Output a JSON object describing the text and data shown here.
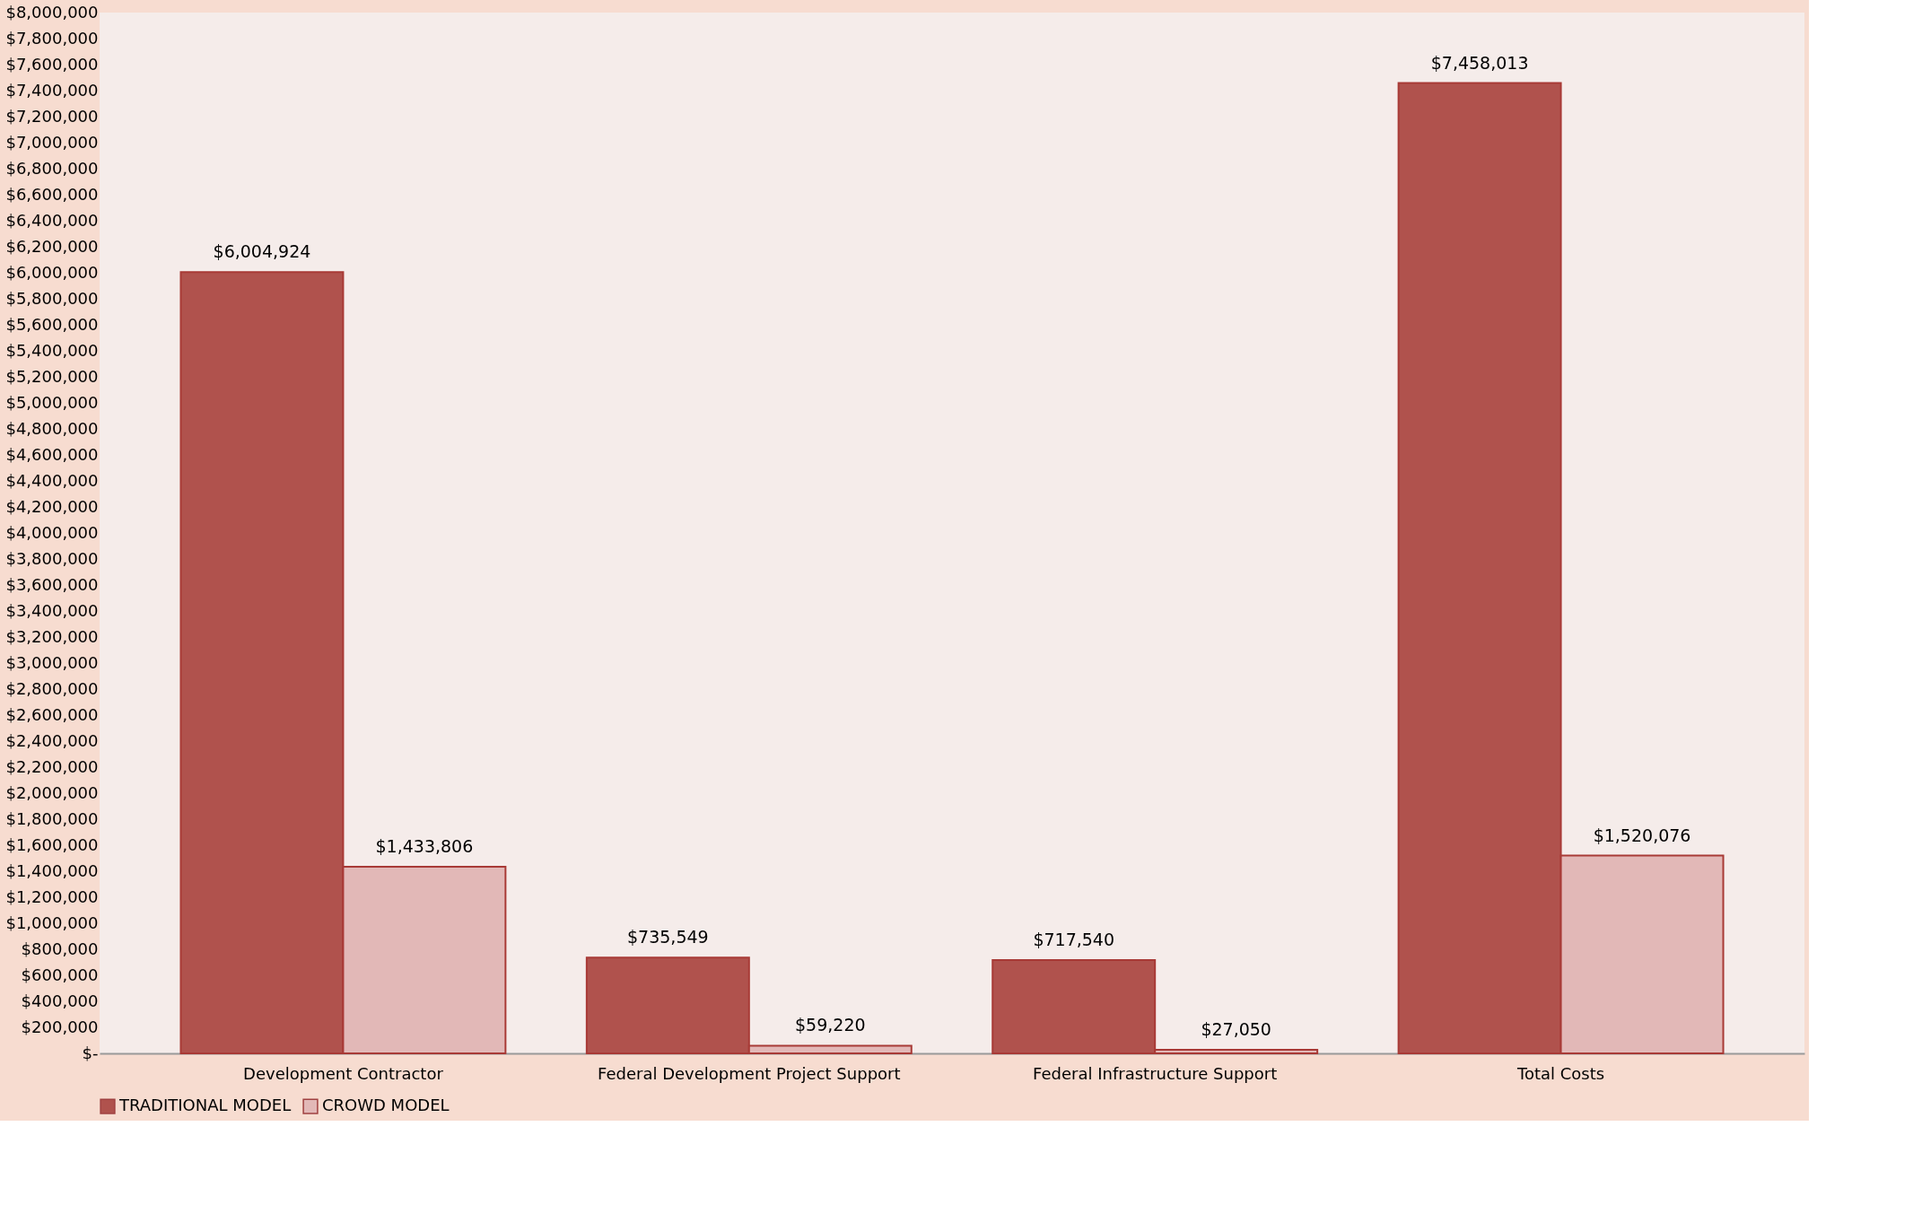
{
  "chart_data": {
    "type": "bar",
    "categories": [
      "Development Contractor",
      "Federal Development Project Support",
      "Federal Infrastructure Support",
      "Total Costs"
    ],
    "series": [
      {
        "name": "TRADITIONAL MODEL",
        "color": "#b0524d",
        "values": [
          6004924,
          735549,
          717540,
          7458013
        ],
        "value_labels": [
          "$6,004,924",
          "$735,549",
          "$717,540",
          "$7,458,013"
        ]
      },
      {
        "name": "CROWD MODEL",
        "color": "#e2b8b7",
        "values": [
          1433806,
          59220,
          27050,
          1520076
        ],
        "value_labels": [
          "$1,433,806",
          "$59,220",
          "$27,050",
          "$1,520,076"
        ]
      }
    ],
    "ylim": [
      0,
      8000000
    ],
    "yticks": [
      {
        "value": 0,
        "label": "$-"
      },
      {
        "value": 200000,
        "label": "$200,000"
      },
      {
        "value": 400000,
        "label": "$400,000"
      },
      {
        "value": 600000,
        "label": "$600,000"
      },
      {
        "value": 800000,
        "label": "$800,000"
      },
      {
        "value": 1000000,
        "label": "$1,000,000"
      },
      {
        "value": 1200000,
        "label": "$1,200,000"
      },
      {
        "value": 1400000,
        "label": "$1,400,000"
      },
      {
        "value": 1600000,
        "label": "$1,600,000"
      },
      {
        "value": 1800000,
        "label": "$1,800,000"
      },
      {
        "value": 2000000,
        "label": "$2,000,000"
      },
      {
        "value": 2200000,
        "label": "$2,200,000"
      },
      {
        "value": 2400000,
        "label": "$2,400,000"
      },
      {
        "value": 2600000,
        "label": "$2,600,000"
      },
      {
        "value": 2800000,
        "label": "$2,800,000"
      },
      {
        "value": 3000000,
        "label": "$3,000,000"
      },
      {
        "value": 3200000,
        "label": "$3,200,000"
      },
      {
        "value": 3400000,
        "label": "$3,400,000"
      },
      {
        "value": 3600000,
        "label": "$3,600,000"
      },
      {
        "value": 3800000,
        "label": "$3,800,000"
      },
      {
        "value": 4000000,
        "label": "$4,000,000"
      },
      {
        "value": 4200000,
        "label": "$4,200,000"
      },
      {
        "value": 4400000,
        "label": "$4,400,000"
      },
      {
        "value": 4600000,
        "label": "$4,600,000"
      },
      {
        "value": 4800000,
        "label": "$4,800,000"
      },
      {
        "value": 5000000,
        "label": "$5,000,000"
      },
      {
        "value": 5200000,
        "label": "$5,200,000"
      },
      {
        "value": 5400000,
        "label": "$5,400,000"
      },
      {
        "value": 5600000,
        "label": "$5,600,000"
      },
      {
        "value": 5800000,
        "label": "$5,800,000"
      },
      {
        "value": 6000000,
        "label": "$6,000,000"
      },
      {
        "value": 6200000,
        "label": "$6,200,000"
      },
      {
        "value": 6400000,
        "label": "$6,400,000"
      },
      {
        "value": 6600000,
        "label": "$6,600,000"
      },
      {
        "value": 6800000,
        "label": "$6,800,000"
      },
      {
        "value": 7000000,
        "label": "$7,000,000"
      },
      {
        "value": 7200000,
        "label": "$7,200,000"
      },
      {
        "value": 7400000,
        "label": "$7,400,000"
      },
      {
        "value": 7600000,
        "label": "$7,600,000"
      },
      {
        "value": 7800000,
        "label": "$7,800,000"
      },
      {
        "value": 8000000,
        "label": "$8,000,000"
      }
    ],
    "grid": false,
    "legend": "bottom"
  }
}
